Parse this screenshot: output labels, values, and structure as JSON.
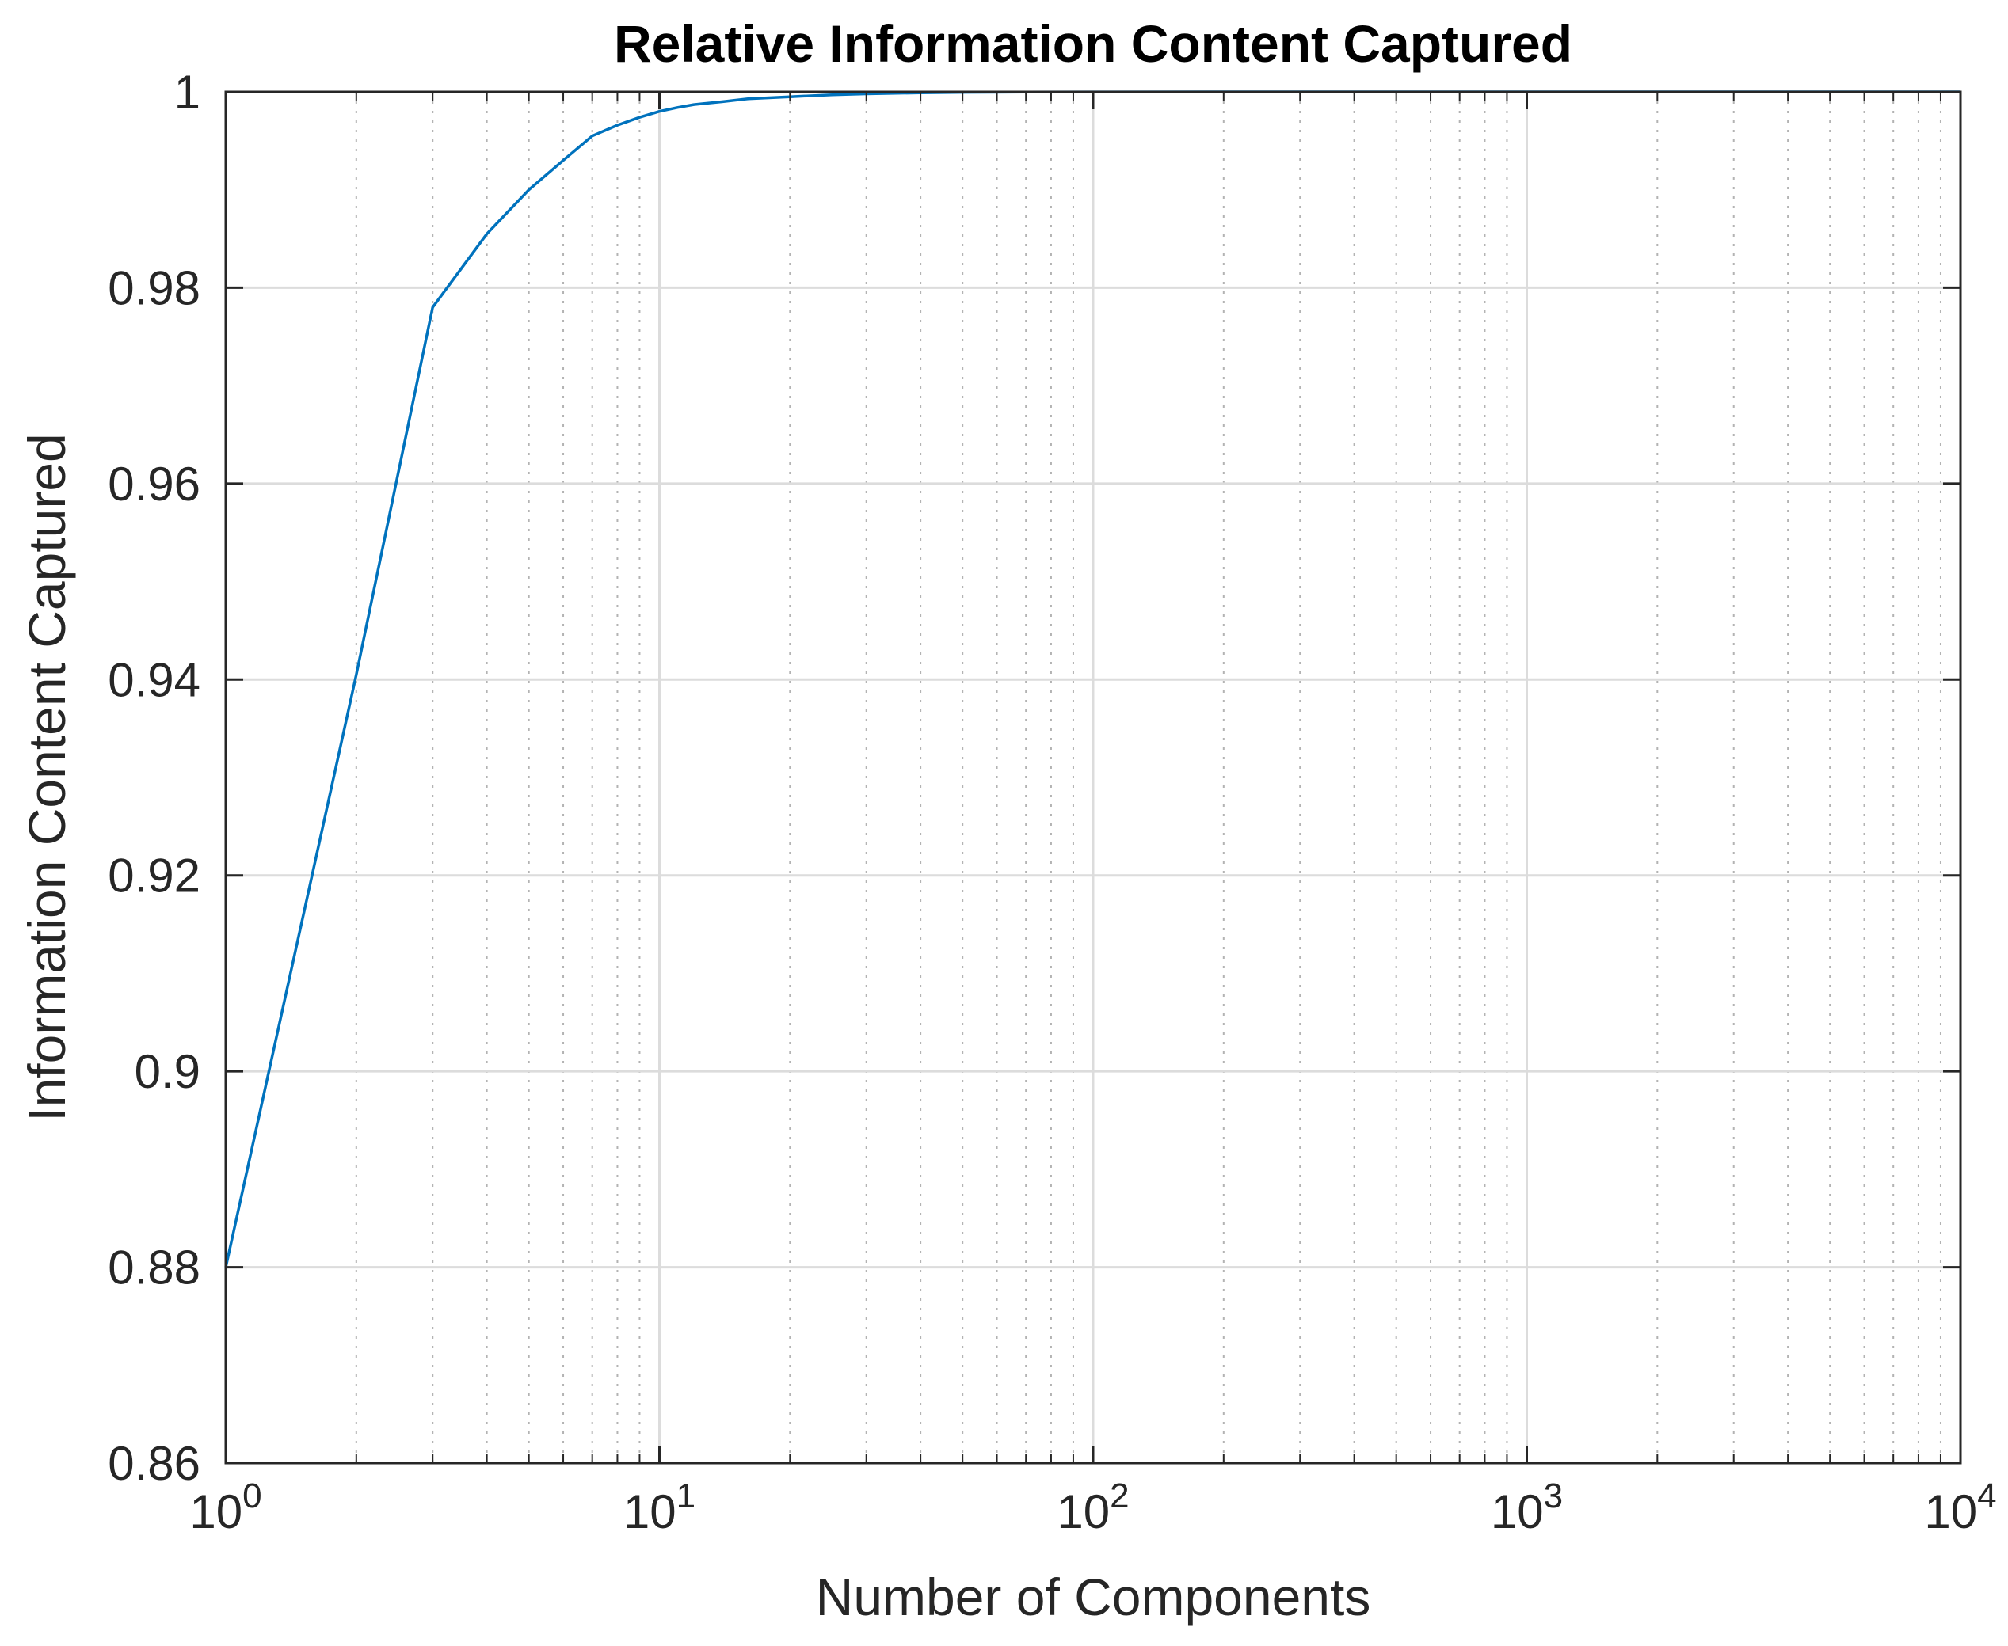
{
  "chart_data": {
    "type": "line",
    "title": "Relative Information Content Captured",
    "xlabel": "Number of Components",
    "ylabel": "Information Content Captured",
    "xscale": "log",
    "xlim": [
      1,
      10000
    ],
    "ylim": [
      0.86,
      1
    ],
    "grid": true,
    "minor_grid": true,
    "x_ticks": [
      {
        "base": "10",
        "exp": "0"
      },
      {
        "base": "10",
        "exp": "1"
      },
      {
        "base": "10",
        "exp": "2"
      },
      {
        "base": "10",
        "exp": "3"
      },
      {
        "base": "10",
        "exp": "4"
      }
    ],
    "y_ticks": [
      "0.86",
      "0.88",
      "0.9",
      "0.92",
      "0.94",
      "0.96",
      "0.98",
      "1"
    ],
    "series": [
      {
        "color": "#0072BD",
        "x": [
          1,
          2,
          3,
          4,
          5,
          6,
          7,
          8,
          9,
          10,
          11,
          12,
          14,
          16,
          20,
          25,
          30,
          40,
          50,
          70,
          100,
          200,
          500,
          1000,
          2000,
          5000,
          10000
        ],
        "y": [
          0.88,
          0.9405,
          0.978,
          0.9855,
          0.99,
          0.993,
          0.9955,
          0.9966,
          0.9974,
          0.998,
          0.9984,
          0.9987,
          0.999,
          0.9993,
          0.9995,
          0.9997,
          0.9998,
          0.9999,
          0.99995,
          0.99998,
          0.99999,
          1.0,
          1.0,
          1.0,
          1.0,
          1.0,
          1.0
        ]
      }
    ]
  }
}
